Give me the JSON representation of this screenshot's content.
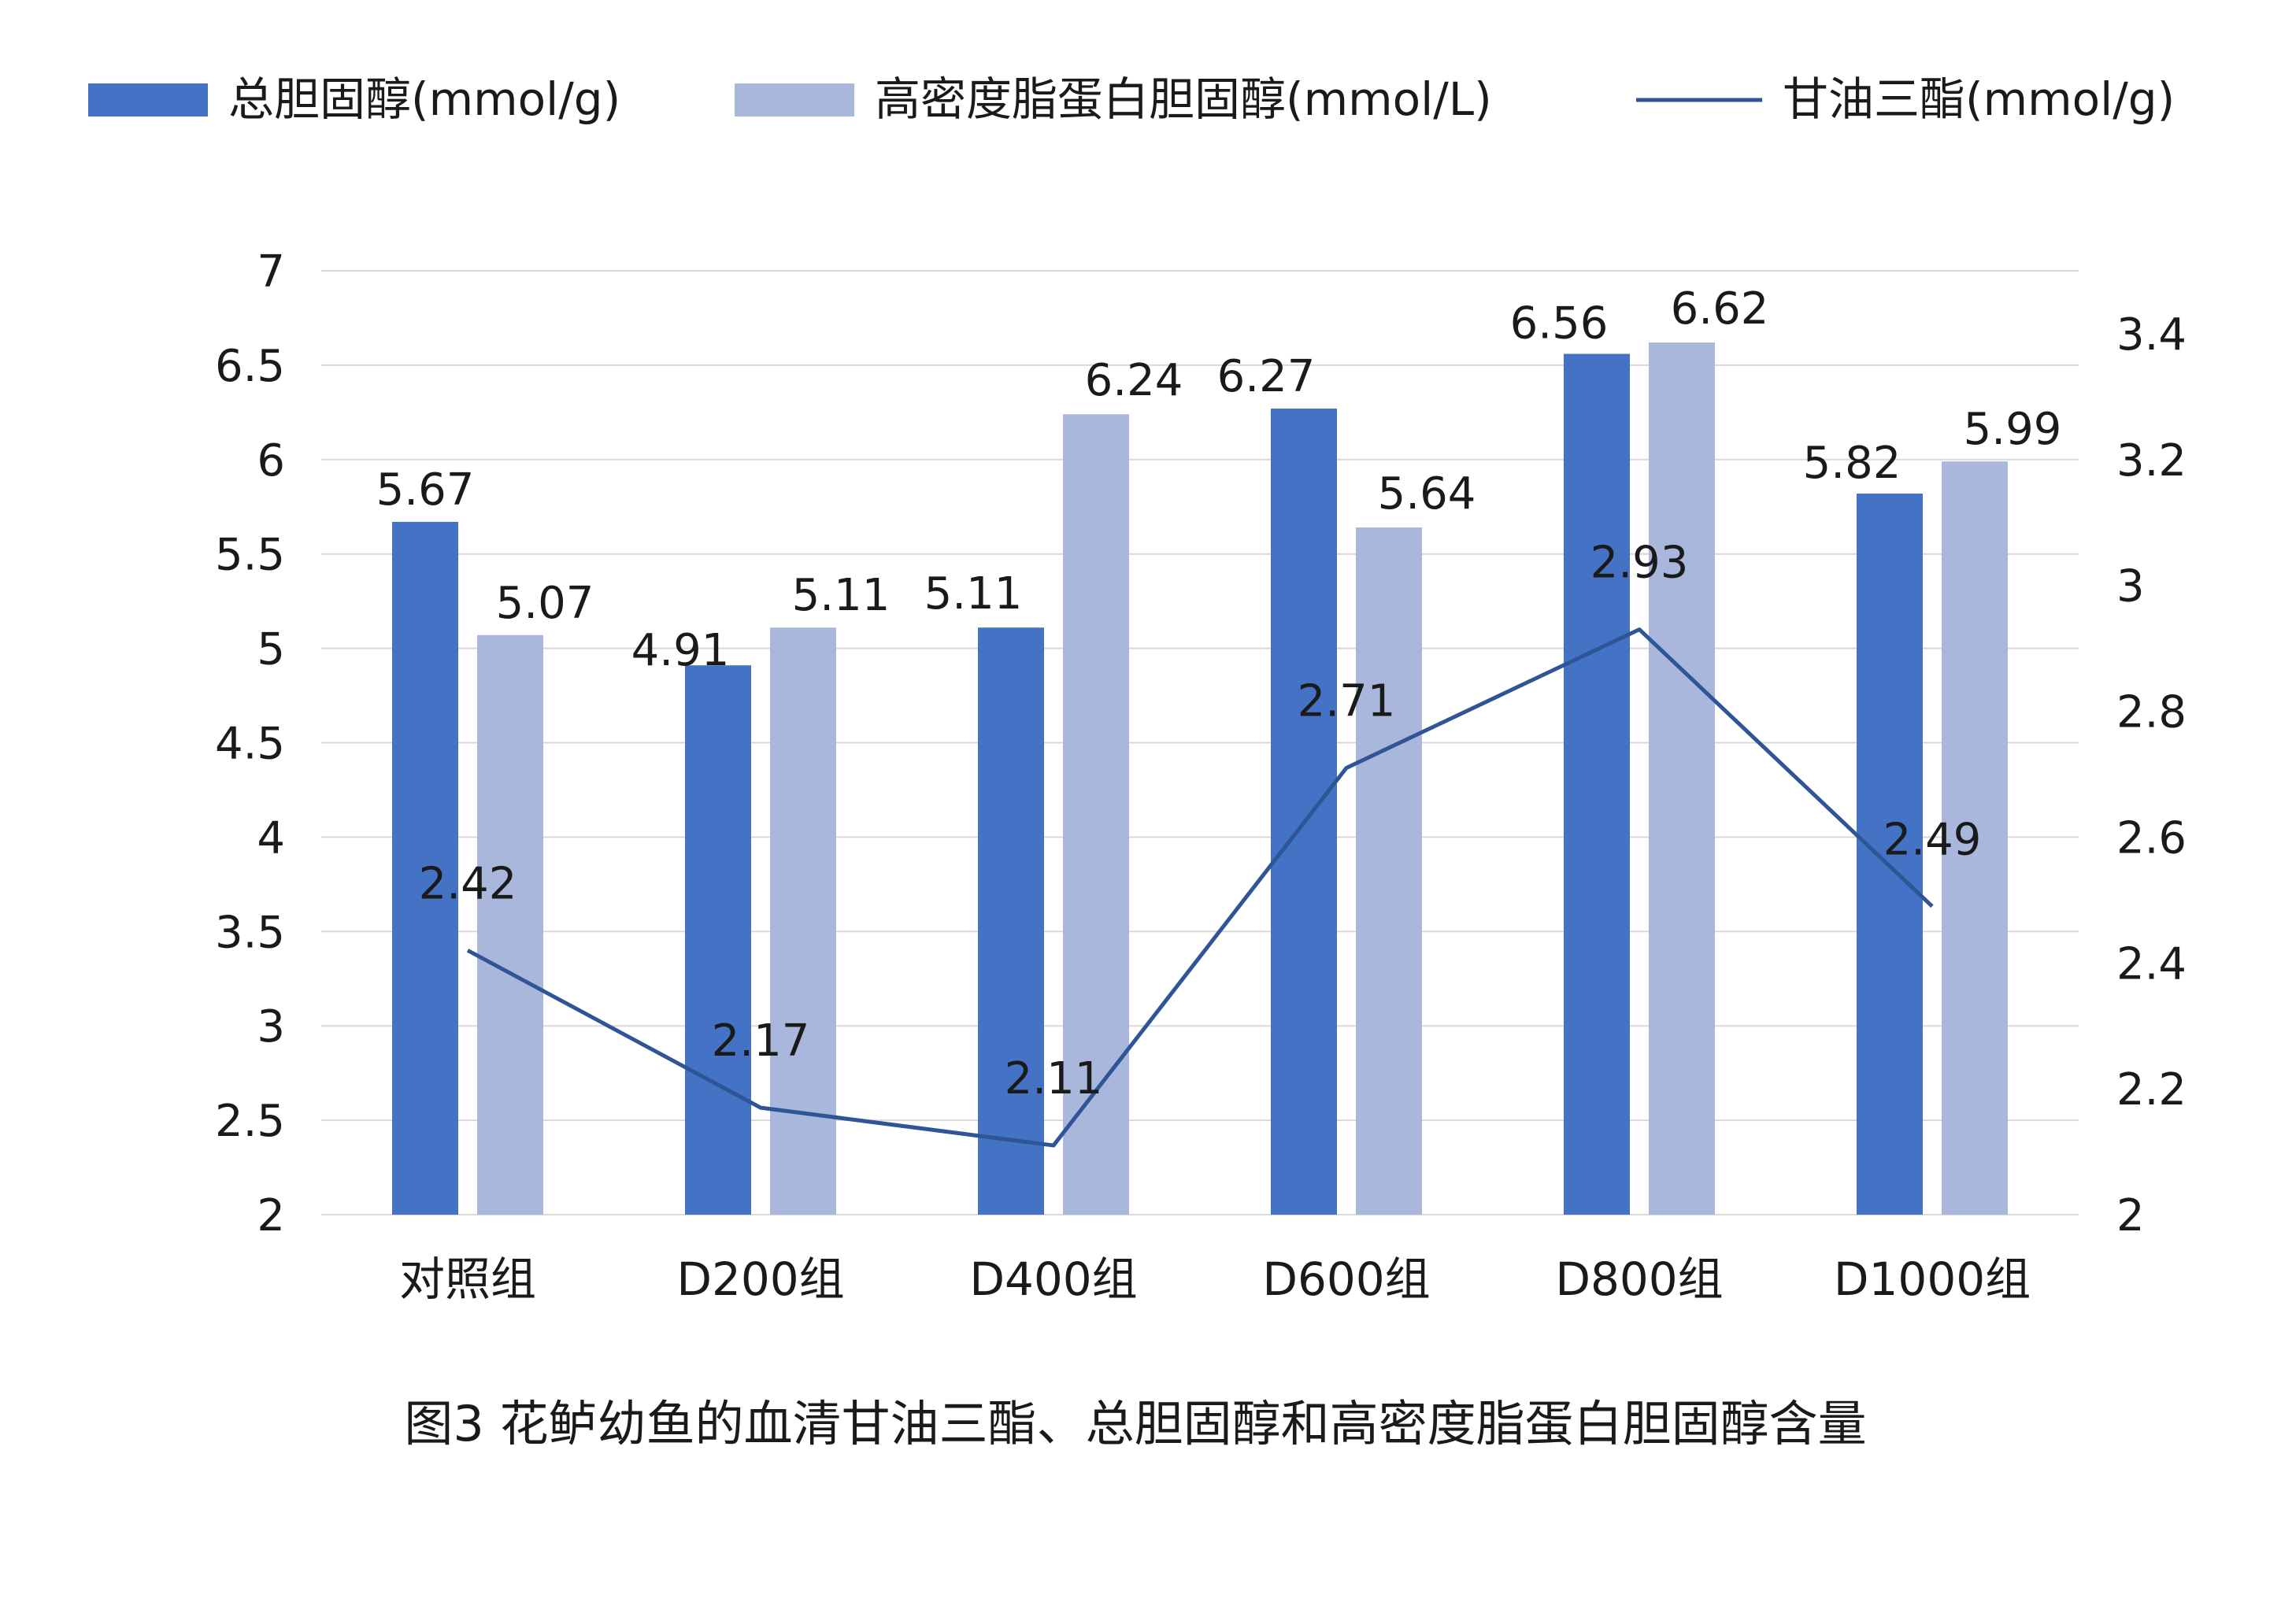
{
  "chart_data": {
    "type": "bar",
    "title": "",
    "caption": "图3 花鲈幼鱼的血清甘油三酯、总胆固醇和高密度脂蛋白胆固醇含量",
    "categories": [
      "对照组",
      "D200组",
      "D400组",
      "D600组",
      "D800组",
      "D1000组"
    ],
    "series": [
      {
        "name": "总胆固醇(mmol/g)",
        "type": "bar",
        "axis": "left",
        "color": "#4472C4",
        "values": [
          5.67,
          4.91,
          5.11,
          6.27,
          6.56,
          5.82
        ]
      },
      {
        "name": "高密度脂蛋白胆固醇(mmol/L)",
        "type": "bar",
        "axis": "left",
        "color": "#A9B7DC",
        "values": [
          5.07,
          5.11,
          6.24,
          5.64,
          6.62,
          5.99
        ]
      },
      {
        "name": "甘油三酯(mmol/g)",
        "type": "line",
        "axis": "right",
        "color": "#2F5597",
        "values": [
          2.42,
          2.17,
          2.11,
          2.71,
          2.93,
          2.49
        ]
      }
    ],
    "y_left": {
      "min": 2,
      "max": 7,
      "ticks": [
        "2",
        "2.5",
        "3",
        "3.5",
        "4",
        "4.5",
        "5",
        "5.5",
        "6",
        "6.5",
        "7"
      ]
    },
    "y_right": {
      "min": 2,
      "max": 3.5,
      "ticks": [
        "2",
        "2.2",
        "2.4",
        "2.6",
        "2.8",
        "3",
        "3.2",
        "3.4"
      ]
    },
    "grid": true,
    "legend_position": "top"
  }
}
